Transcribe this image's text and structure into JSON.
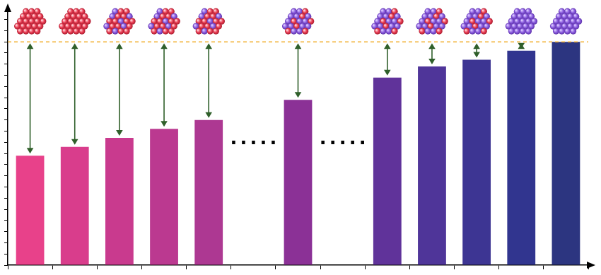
{
  "chart_data": {
    "type": "bar",
    "categories": [
      null,
      null,
      null,
      null,
      null,
      null,
      null,
      null,
      null,
      null,
      null,
      null,
      null
    ],
    "values": [
      49,
      53,
      57,
      61,
      65,
      null,
      74,
      null,
      84,
      89,
      92,
      96,
      100
    ],
    "colors": [
      "#e8418a",
      "#d93d8c",
      "#c93a8e",
      "#bb3990",
      "#ad3892",
      null,
      "#8b3196",
      null,
      "#60339a",
      "#4f3599",
      "#3d3593",
      "#31358f",
      "#2c3580"
    ],
    "ylim": [
      0,
      114
    ],
    "yticks": [
      0,
      5,
      10,
      15,
      20,
      25,
      30,
      35,
      40,
      45,
      50,
      55,
      60,
      65,
      70,
      75,
      80,
      85,
      90,
      95,
      100,
      105,
      110
    ],
    "tick_labels": false,
    "grid": false,
    "reference_line": {
      "value": 100,
      "color": "#f2b133",
      "line_style": "dashed"
    },
    "annotations": [
      {
        "text": ".....",
        "position": 5,
        "y": 54
      },
      {
        "text": ".....",
        "position": 7,
        "y": 54
      }
    ]
  }
}
